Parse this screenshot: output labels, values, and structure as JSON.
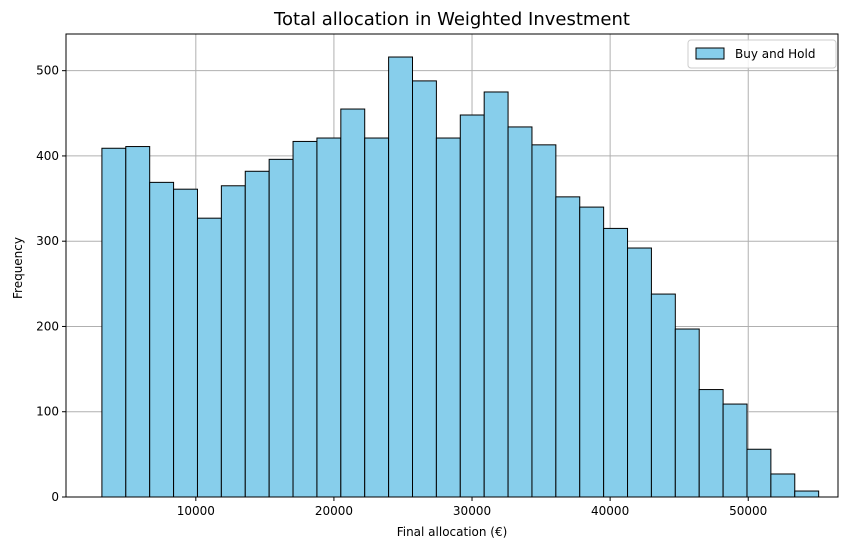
{
  "chart_data": {
    "type": "bar",
    "title": "Total allocation in Weighted Investment",
    "xlabel": "Final allocation (€)",
    "ylabel": "Frequency",
    "xlim": [
      600,
      56500
    ],
    "ylim": [
      0,
      543
    ],
    "xticks": [
      10000,
      20000,
      30000,
      40000,
      50000
    ],
    "yticks": [
      0,
      100,
      200,
      300,
      400,
      500
    ],
    "grid": true,
    "legend_position": "top-right",
    "bin_start": 3200,
    "bin_width": 1730,
    "series": [
      {
        "name": "Buy and Hold",
        "values": [
          409,
          411,
          369,
          361,
          327,
          365,
          382,
          396,
          417,
          421,
          455,
          421,
          516,
          488,
          421,
          448,
          475,
          434,
          413,
          352,
          340,
          315,
          292,
          238,
          197,
          126,
          109,
          56,
          27,
          7
        ]
      }
    ],
    "colors": {
      "fill": "#87ceeb",
      "edge": "#000000",
      "grid": "#b0b0b0"
    }
  }
}
